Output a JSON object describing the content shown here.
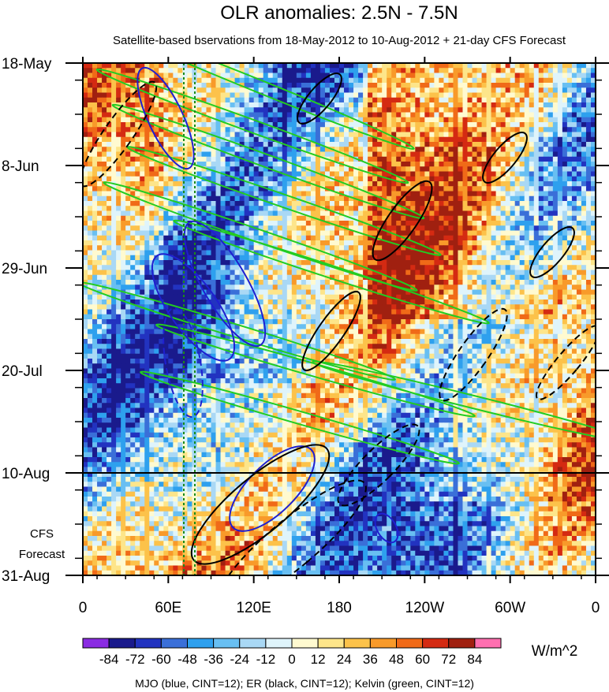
{
  "chart_data": {
    "type": "heatmap",
    "title": "OLR anomalies: 2.5N - 7.5N",
    "subtitle": "Satellite-based bservations from 18-May-2012 to 10-Aug-2012 + 21-day CFS Forecast",
    "x_tick_labels": [
      "0",
      "60E",
      "120E",
      "180",
      "120W",
      "60W",
      "0"
    ],
    "y_tick_labels": [
      "18-May",
      "8-Jun",
      "29-Jun",
      "20-Jul",
      "10-Aug",
      "31-Aug"
    ],
    "forecast_label_line1": "CFS",
    "forecast_label_line2": "Forecast",
    "observation_end": "10-Aug",
    "color_levels": [
      "-84",
      "-72",
      "-60",
      "-48",
      "-36",
      "-24",
      "-12",
      "0",
      "12",
      "24",
      "36",
      "48",
      "60",
      "72",
      "84"
    ],
    "colorbar_unit": "W/m^2",
    "colors": [
      "#8a2be2",
      "#1a1a8c",
      "#2233c0",
      "#3a6fd8",
      "#2ea0ee",
      "#68bff2",
      "#a9d8f5",
      "#dff4fb",
      "#fffad0",
      "#fde58a",
      "#fcc24a",
      "#f89a2a",
      "#f06a18",
      "#d42a12",
      "#a02010",
      "#ff6fb0"
    ],
    "contours_caption": "MJO (blue, CINT=12); ER (black, CINT=12); Kelvin (green, CINT=12)",
    "contour_colors": {
      "mjo": "#1f1fd0",
      "er": "#000000",
      "kelvin": "#22cc22"
    },
    "reference_lines": [
      "70E",
      "80E"
    ]
  }
}
